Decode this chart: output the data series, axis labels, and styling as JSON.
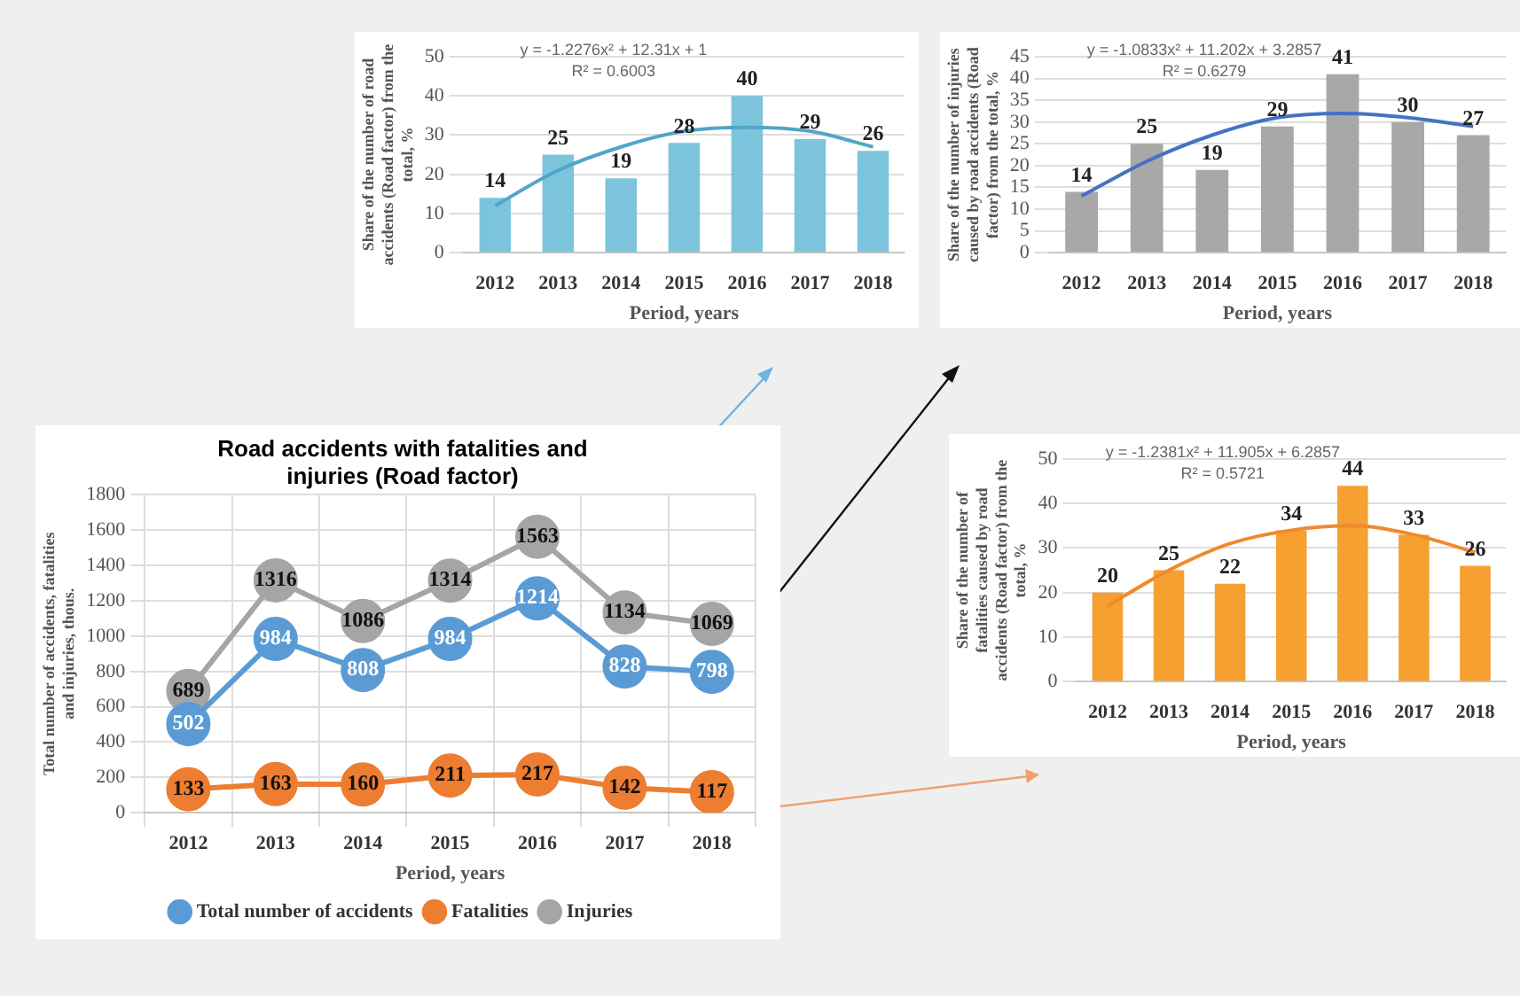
{
  "chart_data": [
    {
      "type": "bar",
      "categories": [
        "2012",
        "2013",
        "2014",
        "2015",
        "2016",
        "2017",
        "2018"
      ],
      "xlabel": "Period, years",
      "ylabel": "Share of the number of road accidents (Road factor) from the total, %",
      "ylim": [
        0,
        50
      ],
      "yticks": [
        0,
        10,
        20,
        30,
        40,
        50
      ],
      "grid": "y",
      "marker": "none",
      "annotations": [
        "y = -1.2276x² + 12.31x + 1",
        "R² = 0.6003"
      ],
      "series": [
        {
          "type": "bar",
          "color": "#7cc4dc",
          "values": [
            14,
            25,
            19,
            28,
            40,
            29,
            26
          ],
          "value_labels": [
            "14",
            "25",
            "19",
            "28",
            "40",
            "29",
            "26"
          ]
        },
        {
          "type": "line",
          "color": "#4fa6c8",
          "values": [
            12,
            21,
            27,
            31,
            32,
            31,
            27
          ]
        }
      ]
    },
    {
      "type": "bar",
      "categories": [
        "2012",
        "2013",
        "2014",
        "2015",
        "2016",
        "2017",
        "2018"
      ],
      "xlabel": "Period, years",
      "ylabel": "Share of the number of injuries caused by road accidents (Road factor) from the total, %",
      "ylim": [
        0,
        45
      ],
      "yticks": [
        0,
        5,
        10,
        15,
        20,
        25,
        30,
        35,
        40,
        45
      ],
      "grid": "y",
      "marker": "none",
      "annotations": [
        "y = -1.0833x² + 11.202x + 3.2857",
        "R² = 0.6279"
      ],
      "series": [
        {
          "type": "bar",
          "color": "#a8a8a8",
          "values": [
            14,
            25,
            19,
            29,
            41,
            30,
            27
          ],
          "value_labels": [
            "14",
            "25",
            "19",
            "29",
            "41",
            "30",
            "27"
          ]
        },
        {
          "type": "line",
          "color": "#4472c4",
          "values": [
            13,
            21,
            27,
            31,
            32,
            31,
            29
          ]
        }
      ]
    },
    {
      "type": "line",
      "title": "Road accidents with fatalities and injuries (Road factor)",
      "categories": [
        "2012",
        "2013",
        "2014",
        "2015",
        "2016",
        "2017",
        "2018"
      ],
      "xlabel": "Period, years",
      "ylabel": "Total number of accidents, fatalities and injuries, thous.",
      "ylim": [
        0,
        1800
      ],
      "yticks": [
        0,
        200,
        400,
        600,
        800,
        1000,
        1200,
        1400,
        1600,
        1800
      ],
      "grid": true,
      "legend": "bottom",
      "marker": "circle",
      "data_labels": true,
      "series": [
        {
          "name": "Total number of accidents",
          "color": "#5b9bd5",
          "values": [
            502,
            984,
            808,
            984,
            1214,
            828,
            798
          ]
        },
        {
          "name": "Fatalities",
          "color": "#ed7d31",
          "values": [
            133,
            163,
            160,
            211,
            217,
            142,
            117
          ]
        },
        {
          "name": "Injuries",
          "color": "#a5a5a5",
          "values": [
            689,
            1316,
            1086,
            1314,
            1563,
            1134,
            1069
          ]
        }
      ]
    },
    {
      "type": "bar",
      "categories": [
        "2012",
        "2013",
        "2014",
        "2015",
        "2016",
        "2017",
        "2018"
      ],
      "xlabel": "Period, years",
      "ylabel": "Share of the number of fatalities caused by road accidents (Road factor) from the total, %",
      "ylim": [
        0,
        50
      ],
      "yticks": [
        0,
        10,
        20,
        30,
        40,
        50
      ],
      "grid": "y",
      "marker": "none",
      "annotations": [
        "y = -1.2381x² + 11.905x + 6.2857",
        "R² = 0.5721"
      ],
      "series": [
        {
          "type": "bar",
          "color": "#f5a031",
          "values": [
            20,
            25,
            22,
            34,
            44,
            33,
            26
          ],
          "value_labels": [
            "20",
            "25",
            "22",
            "34",
            "44",
            "33",
            "26"
          ]
        },
        {
          "type": "line",
          "color": "#f08a2c",
          "values": [
            17,
            25,
            31,
            34,
            35,
            33,
            29
          ]
        }
      ]
    }
  ]
}
